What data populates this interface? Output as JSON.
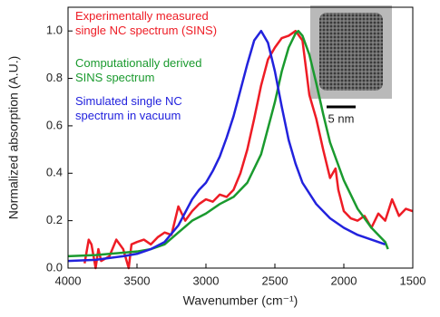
{
  "chart_data": {
    "type": "line",
    "xlabel": "Wavenumber (cm⁻¹)",
    "ylabel": "Normalized absorption (A.U.)",
    "inset_scale_label": "5 nm",
    "xlim": [
      4000,
      1500
    ],
    "xticks": [
      4000,
      3500,
      3000,
      2500,
      2000,
      1500
    ],
    "ylim": [
      0,
      1.1
    ],
    "yticks": [
      {
        "value": 0,
        "label": "0.0"
      },
      0.2,
      0.4,
      0.6,
      0.8,
      {
        "value": 1,
        "label": "1.0"
      }
    ],
    "grid": false,
    "series": [
      {
        "name": "Experimentally measured\nsingle NC spectrum (SINS)",
        "color": "#ee1c25",
        "x": [
          3880,
          3850,
          3830,
          3800,
          3780,
          3760,
          3700,
          3650,
          3600,
          3560,
          3540,
          3500,
          3450,
          3400,
          3350,
          3300,
          3250,
          3200,
          3150,
          3100,
          3050,
          3000,
          2950,
          2900,
          2850,
          2800,
          2750,
          2700,
          2650,
          2600,
          2550,
          2500,
          2450,
          2400,
          2350,
          2300,
          2250,
          2200,
          2150,
          2100,
          2060,
          2040,
          2000,
          1950,
          1900,
          1850,
          1800,
          1750,
          1700,
          1650,
          1600,
          1550,
          1500
        ],
        "values": [
          0.02,
          0.12,
          0.1,
          0.0,
          0.08,
          0.03,
          0.05,
          0.12,
          0.08,
          0.0,
          0.1,
          0.11,
          0.12,
          0.1,
          0.13,
          0.15,
          0.14,
          0.26,
          0.2,
          0.24,
          0.27,
          0.29,
          0.28,
          0.31,
          0.3,
          0.33,
          0.4,
          0.5,
          0.63,
          0.77,
          0.88,
          0.93,
          0.97,
          0.98,
          1.0,
          0.96,
          0.73,
          0.63,
          0.5,
          0.38,
          0.42,
          0.33,
          0.24,
          0.21,
          0.2,
          0.22,
          0.17,
          0.23,
          0.2,
          0.29,
          0.22,
          0.25,
          0.24
        ]
      },
      {
        "name": "Computationally derived\nSINS spectrum",
        "color": "#1a9a2e",
        "x": [
          4000,
          3800,
          3600,
          3500,
          3400,
          3300,
          3200,
          3100,
          3000,
          2900,
          2800,
          2700,
          2600,
          2500,
          2450,
          2400,
          2350,
          2330,
          2300,
          2250,
          2200,
          2150,
          2100,
          2000,
          1900,
          1800,
          1700,
          1680
        ],
        "values": [
          0.05,
          0.055,
          0.065,
          0.07,
          0.08,
          0.1,
          0.15,
          0.2,
          0.23,
          0.27,
          0.3,
          0.36,
          0.48,
          0.7,
          0.83,
          0.93,
          0.99,
          1.0,
          0.98,
          0.9,
          0.78,
          0.65,
          0.53,
          0.37,
          0.25,
          0.17,
          0.11,
          0.08
        ]
      },
      {
        "name": "Simulated single NC\nspectrum in vacuum",
        "color": "#2222dd",
        "x": [
          4000,
          3800,
          3600,
          3500,
          3400,
          3300,
          3200,
          3100,
          3050,
          3000,
          2950,
          2900,
          2850,
          2800,
          2750,
          2700,
          2650,
          2600,
          2550,
          2500,
          2450,
          2400,
          2350,
          2300,
          2200,
          2100,
          2000,
          1900,
          1800,
          1700
        ],
        "values": [
          0.03,
          0.035,
          0.05,
          0.06,
          0.08,
          0.11,
          0.18,
          0.29,
          0.33,
          0.36,
          0.41,
          0.47,
          0.55,
          0.64,
          0.75,
          0.86,
          0.96,
          1.0,
          0.95,
          0.83,
          0.68,
          0.54,
          0.44,
          0.36,
          0.27,
          0.21,
          0.17,
          0.14,
          0.12,
          0.1
        ]
      }
    ]
  }
}
